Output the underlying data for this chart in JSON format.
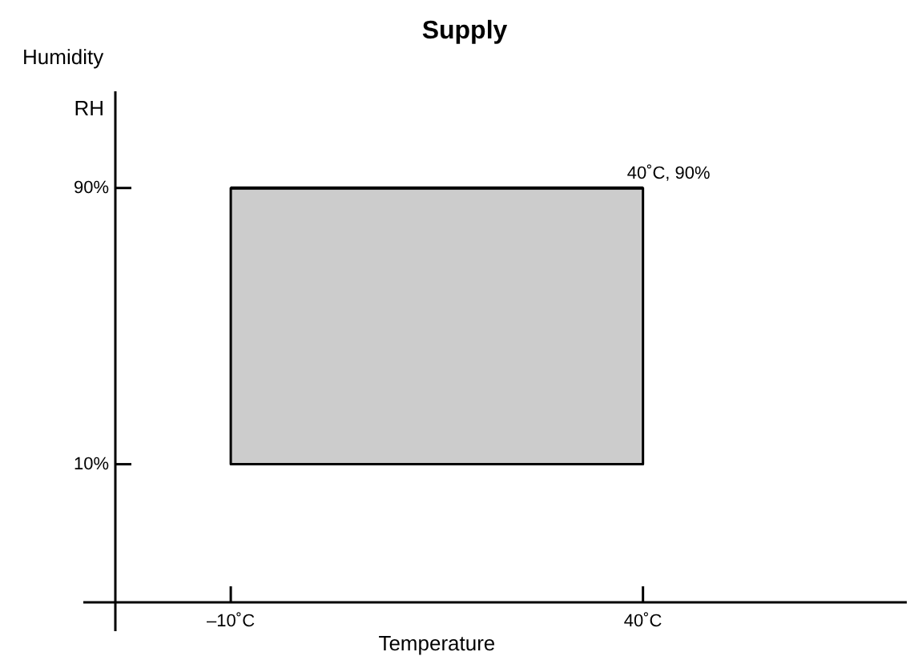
{
  "chart_data": {
    "type": "line",
    "title": "Supply",
    "xlabel": "Temperature",
    "ylabel": "RH",
    "x": [
      -10,
      40
    ],
    "series": [
      {
        "color": "#000000",
        "values": [
          90,
          90
        ],
        "lower": [
          10,
          10
        ],
        "upper": [
          90,
          90
        ]
      }
    ],
    "xlim": [
      -24,
      72
    ],
    "ylim": [
      -30,
      118
    ],
    "xticks": [
      {
        "value": -10,
        "label": "–10˚C"
      },
      {
        "value": 40,
        "label": "40˚C"
      }
    ],
    "yticks": [
      {
        "value": 10,
        "label": "10%"
      },
      {
        "value": 90,
        "label": "90%"
      }
    ],
    "annotations": [
      "Humidity",
      {
        "text": "40˚C, 90%",
        "x": 40,
        "y": 90
      }
    ],
    "grid": false
  }
}
